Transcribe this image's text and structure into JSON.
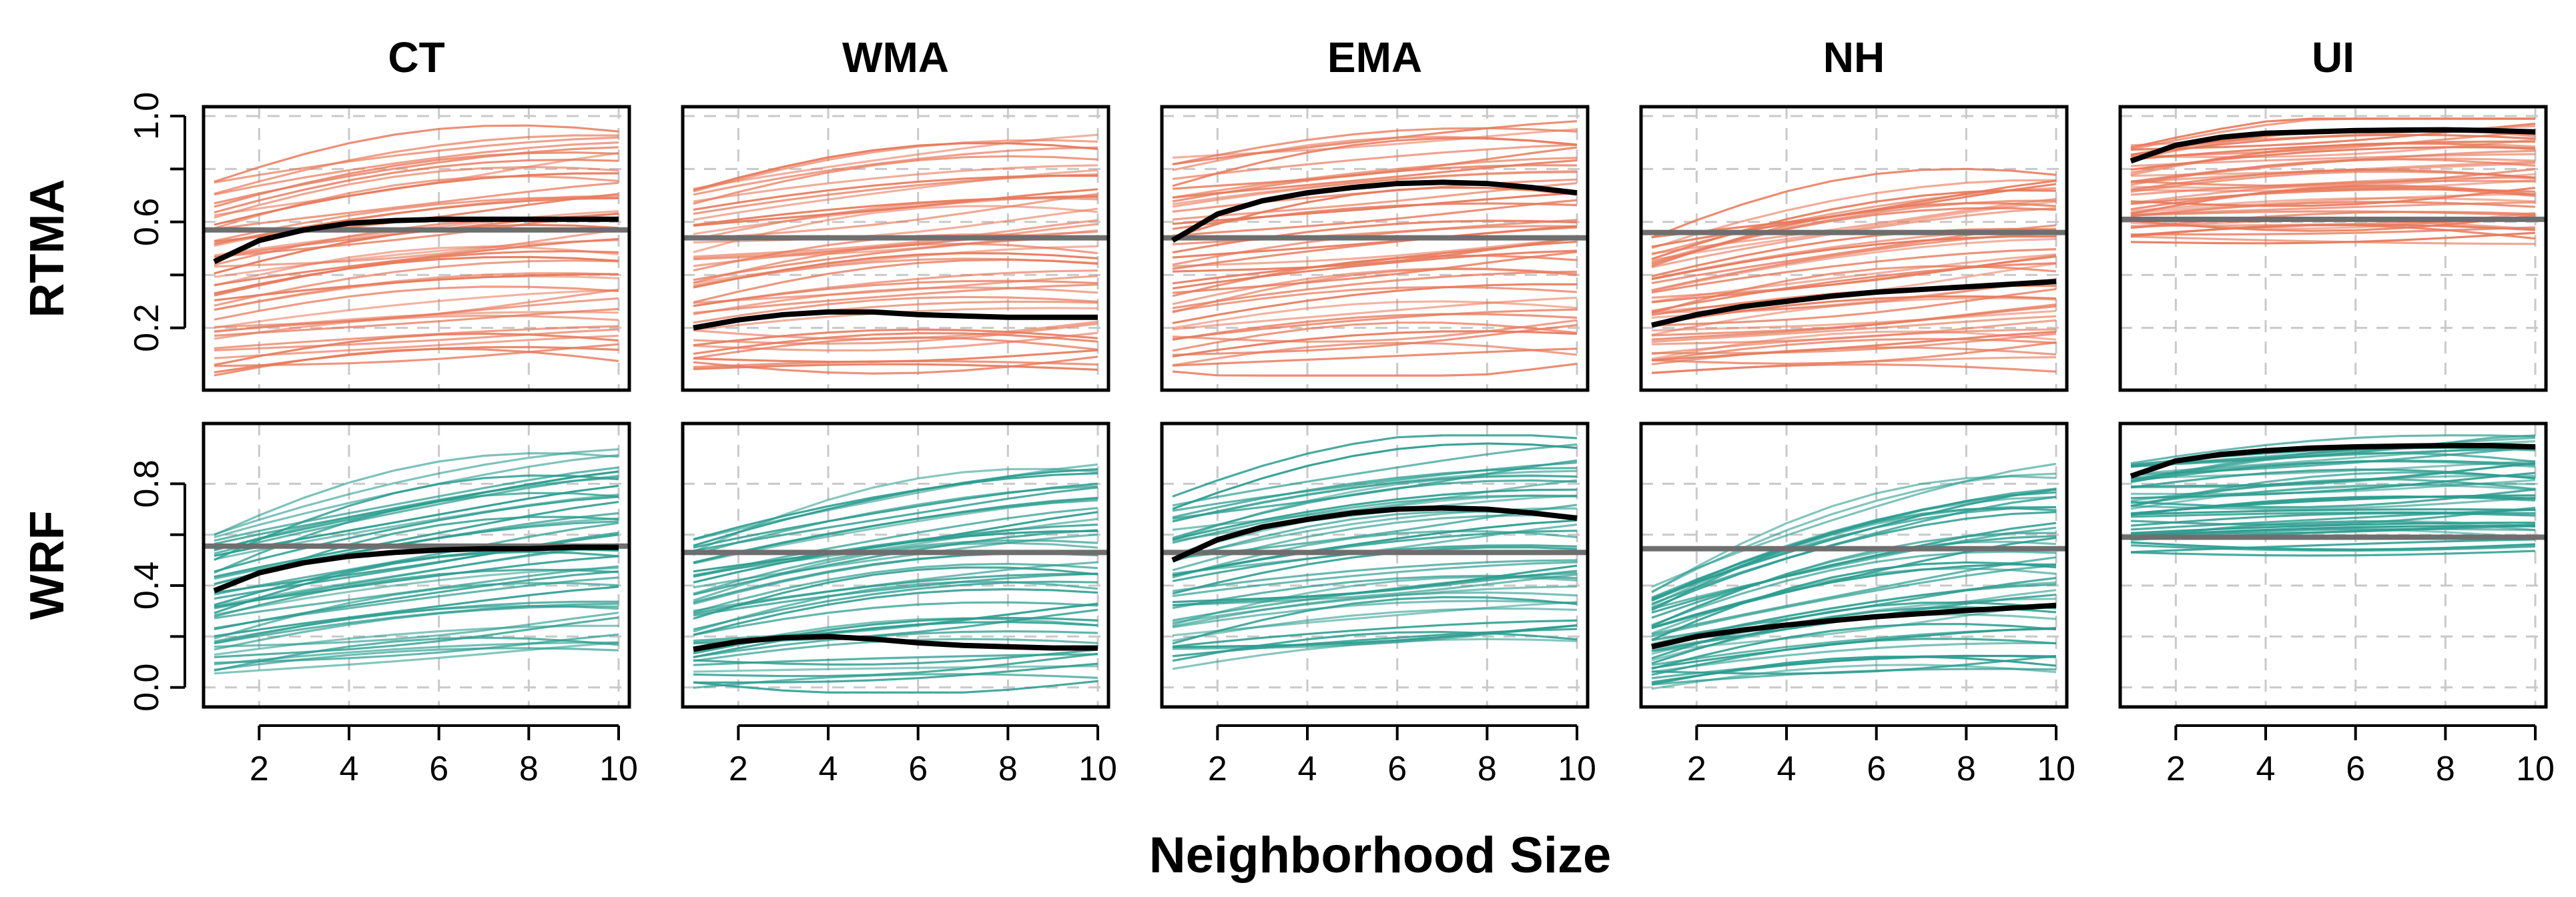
{
  "chart_data": {
    "type": "line",
    "description": "Small-multiple line chart: rows are products, columns are regions; thin lines are individual stations/members, black line is the mean, grey horizontal line is a reference value.",
    "x_axis_title": "Neighborhood Size",
    "x_ticks": [
      2,
      4,
      6,
      8,
      10
    ],
    "xlim": [
      1,
      10
    ],
    "x": [
      1,
      2,
      3,
      4,
      5,
      6,
      7,
      8,
      9,
      10
    ],
    "columns": [
      "CT",
      "WMA",
      "EMA",
      "NH",
      "UI"
    ],
    "rows": [
      {
        "name": "RTMA",
        "color": "#e8795a",
        "y_ticks": [
          0.2,
          0.6,
          1.0
        ],
        "y_tick_labels": [
          "0.2",
          "0.6",
          "1.0"
        ],
        "ylim": [
          0.0,
          1.0
        ],
        "panels": [
          {
            "region": "CT",
            "reference": 0.57,
            "mean": [
              0.45,
              0.53,
              0.57,
              0.595,
              0.605,
              0.61,
              0.61,
              0.61,
              0.61,
              0.61
            ],
            "member_spread": {
              "low_start": 0.02,
              "low_end": 0.05,
              "high_start": 0.75,
              "high_end": 0.97,
              "count": 45
            }
          },
          {
            "region": "WMA",
            "reference": 0.54,
            "mean": [
              0.2,
              0.23,
              0.25,
              0.26,
              0.26,
              0.25,
              0.245,
              0.24,
              0.24,
              0.24
            ],
            "member_spread": {
              "low_start": 0.02,
              "low_end": 0.02,
              "high_start": 0.75,
              "high_end": 0.92,
              "count": 45
            }
          },
          {
            "region": "EMA",
            "reference": 0.54,
            "mean": [
              0.53,
              0.63,
              0.68,
              0.71,
              0.73,
              0.745,
              0.75,
              0.745,
              0.73,
              0.71
            ],
            "member_spread": {
              "low_start": 0.02,
              "low_end": 0.08,
              "high_start": 0.85,
              "high_end": 0.98,
              "count": 45
            }
          },
          {
            "region": "NH",
            "reference": 0.56,
            "mean": [
              0.21,
              0.25,
              0.28,
              0.3,
              0.32,
              0.335,
              0.345,
              0.355,
              0.365,
              0.375
            ],
            "member_spread": {
              "low_start": 0.02,
              "low_end": 0.04,
              "high_start": 0.55,
              "high_end": 0.8,
              "count": 45
            }
          },
          {
            "region": "UI",
            "reference": 0.61,
            "mean": [
              0.83,
              0.89,
              0.92,
              0.935,
              0.94,
              0.945,
              0.947,
              0.948,
              0.945,
              0.94
            ],
            "member_spread": {
              "low_start": 0.52,
              "low_end": 0.52,
              "high_start": 0.9,
              "high_end": 0.99,
              "count": 45
            }
          }
        ]
      },
      {
        "name": "WRF",
        "color": "#2a9d8f",
        "y_ticks": [
          0.0,
          0.4,
          0.8
        ],
        "y_tick_labels": [
          "0.0",
          "0.4",
          "0.8"
        ],
        "ylim": [
          -0.04,
          1.0
        ],
        "panels": [
          {
            "region": "CT",
            "reference": 0.555,
            "mean": [
              0.38,
              0.45,
              0.49,
              0.515,
              0.53,
              0.54,
              0.545,
              0.545,
              0.55,
              0.55
            ],
            "member_spread": {
              "low_start": 0.05,
              "low_end": 0.12,
              "high_start": 0.62,
              "high_end": 0.93,
              "count": 45
            }
          },
          {
            "region": "WMA",
            "reference": 0.53,
            "mean": [
              0.15,
              0.18,
              0.195,
              0.2,
              0.19,
              0.175,
              0.165,
              0.16,
              0.155,
              0.155
            ],
            "member_spread": {
              "low_start": 0.0,
              "low_end": 0.0,
              "high_start": 0.6,
              "high_end": 0.9,
              "count": 45
            }
          },
          {
            "region": "EMA",
            "reference": 0.53,
            "mean": [
              0.5,
              0.58,
              0.63,
              0.66,
              0.685,
              0.7,
              0.705,
              0.7,
              0.685,
              0.665
            ],
            "member_spread": {
              "low_start": 0.08,
              "low_end": 0.15,
              "high_start": 0.75,
              "high_end": 0.97,
              "count": 45
            }
          },
          {
            "region": "NH",
            "reference": 0.545,
            "mean": [
              0.16,
              0.2,
              0.225,
              0.245,
              0.262,
              0.278,
              0.29,
              0.302,
              0.312,
              0.322
            ],
            "member_spread": {
              "low_start": 0.0,
              "low_end": 0.02,
              "high_start": 0.4,
              "high_end": 0.87,
              "count": 45
            }
          },
          {
            "region": "UI",
            "reference": 0.59,
            "mean": [
              0.83,
              0.89,
              0.915,
              0.93,
              0.94,
              0.945,
              0.948,
              0.95,
              0.95,
              0.945
            ],
            "member_spread": {
              "low_start": 0.53,
              "low_end": 0.53,
              "high_start": 0.9,
              "high_end": 0.99,
              "count": 45
            }
          }
        ]
      }
    ]
  }
}
